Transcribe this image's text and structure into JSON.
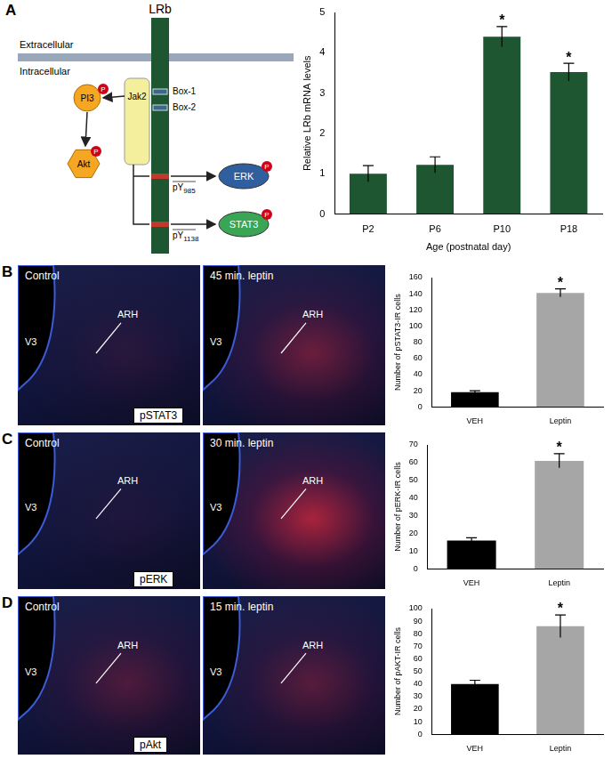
{
  "panels": [
    "A",
    "B",
    "C",
    "D"
  ],
  "diagram": {
    "receptor": "LRb",
    "extracellular": "Extracellular",
    "intracellular": "Intracellular",
    "boxes": [
      "Box-1",
      "Box-2"
    ],
    "kinase": "Jak2",
    "pi3": "PI3",
    "akt": "Akt",
    "phospho": "P",
    "sites": [
      {
        "label": "pY",
        "subscript": "985",
        "target": "ERK"
      },
      {
        "label": "pY",
        "subscript": "1138",
        "target": "STAT3"
      }
    ]
  },
  "images": [
    {
      "left": "Control",
      "right": "45 min. leptin",
      "region": "ARH",
      "ventricle": "V3",
      "stain": "pSTAT3"
    },
    {
      "left": "Control",
      "right": "30 min. leptin",
      "region": "ARH",
      "ventricle": "V3",
      "stain": "pERK"
    },
    {
      "left": "Control",
      "right": "15 min. leptin",
      "region": "ARH",
      "ventricle": "V3",
      "stain": "pAkt"
    }
  ],
  "chart_data": [
    {
      "type": "bar",
      "categories": [
        "P2",
        "P6",
        "P10",
        "P18"
      ],
      "values": [
        1.0,
        1.22,
        4.4,
        3.52
      ],
      "errors": [
        0.2,
        0.2,
        0.25,
        0.22
      ],
      "color": "#1e5631",
      "y_label": "Relative LRb mRNA levels",
      "x_label": "Age (postnatal day)",
      "ylim": [
        0,
        5
      ],
      "yticks": [
        0,
        1,
        2,
        3,
        4,
        5
      ],
      "grid": false,
      "annotations": [
        {
          "category": "P10",
          "text": "*"
        },
        {
          "category": "P18",
          "text": "*"
        }
      ]
    },
    {
      "type": "bar",
      "categories": [
        "VEH",
        "Leptin"
      ],
      "values": [
        18,
        141
      ],
      "errors": [
        2,
        5
      ],
      "colors": [
        "#000000",
        "#a6a6a6"
      ],
      "y_label": "Number of pSTAT3-IR cells",
      "ylim": [
        0,
        160
      ],
      "yticks": [
        0,
        20,
        40,
        60,
        80,
        100,
        120,
        140,
        160
      ],
      "grid": false,
      "annotations": [
        {
          "category": "Leptin",
          "text": "*"
        }
      ]
    },
    {
      "type": "bar",
      "categories": [
        "VEH",
        "Leptin"
      ],
      "values": [
        16,
        61
      ],
      "errors": [
        1.5,
        4
      ],
      "colors": [
        "#000000",
        "#a6a6a6"
      ],
      "y_label": "Number of pERK-IR cells",
      "ylim": [
        0,
        70
      ],
      "yticks": [
        0,
        10,
        20,
        30,
        40,
        50,
        60,
        70
      ],
      "grid": false,
      "annotations": [
        {
          "category": "Leptin",
          "text": "*"
        }
      ]
    },
    {
      "type": "bar",
      "categories": [
        "VEH",
        "Leptin"
      ],
      "values": [
        40,
        86
      ],
      "errors": [
        3,
        9
      ],
      "colors": [
        "#000000",
        "#a6a6a6"
      ],
      "y_label": "Number of pAKT-IR cells",
      "ylim": [
        0,
        100
      ],
      "yticks": [
        0,
        10,
        20,
        30,
        40,
        50,
        60,
        70,
        80,
        90,
        100
      ],
      "grid": false,
      "annotations": [
        {
          "category": "Leptin",
          "text": "*"
        }
      ]
    }
  ]
}
